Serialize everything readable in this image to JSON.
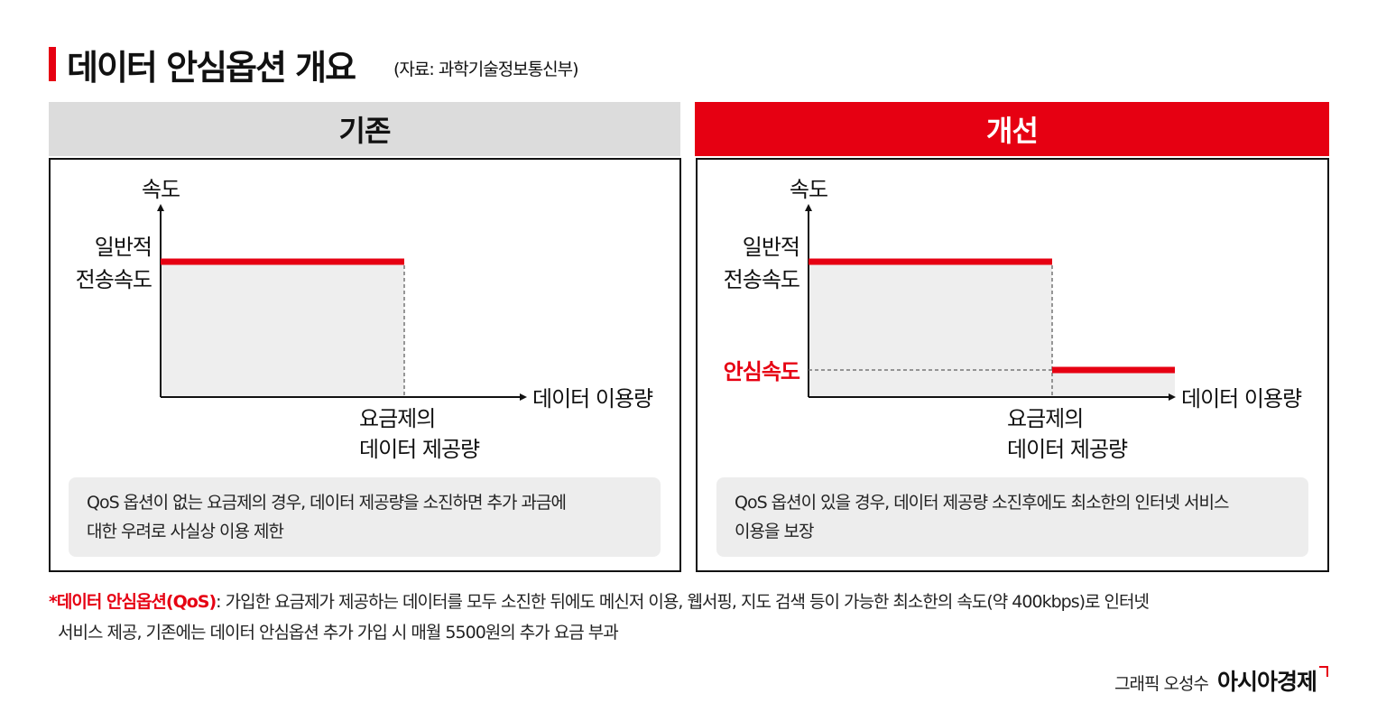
{
  "title": "데이터 안심옵션 개요",
  "source": "(자료: 과학기술정보통신부)",
  "panels": {
    "old": {
      "header": "기존",
      "y_axis_label": "속도",
      "speed_label_1": "일반적",
      "speed_label_2": "전송속도",
      "x_axis_label": "데이터 이용량",
      "threshold_label_1": "요금제의",
      "threshold_label_2": "데이터 제공량",
      "note_line_1": "QoS 옵션이 없는 요금제의 경우, 데이터 제공량을 소진하면 추가 과금에",
      "note_line_2": "대한 우려로 사실상 이용 제한"
    },
    "new": {
      "header": "개선",
      "y_axis_label": "속도",
      "speed_label_1": "일반적",
      "speed_label_2": "전송속도",
      "safe_speed_label": "안심속도",
      "x_axis_label": "데이터 이용량",
      "threshold_label_1": "요금제의",
      "threshold_label_2": "데이터 제공량",
      "note_line_1": "QoS 옵션이 있을 경우, 데이터 제공량 소진후에도 최소한의 인터넷 서비스",
      "note_line_2": "이용을 보장"
    }
  },
  "footnote": {
    "term": "*데이터 안심옵션(QoS)",
    "line_1": ": 가입한 요금제가 제공하는 데이터를 모두 소진한 뒤에도 메신저 이용, 웹서핑, 지도 검색 등이 가능한 최소한의 속도(약 400kbps)로 인터넷",
    "line_2": "서비스 제공, 기존에는 데이터 안심옵션 추가 가입 시 매월 5500원의 추가 요금 부과"
  },
  "credit": {
    "artist": "그래픽 오성수",
    "logo": "아시아경제"
  },
  "colors": {
    "accent": "#e60012",
    "header_gray": "#dcdcdc",
    "area_fill": "#eeeeee",
    "note_bg": "#ededed"
  }
}
